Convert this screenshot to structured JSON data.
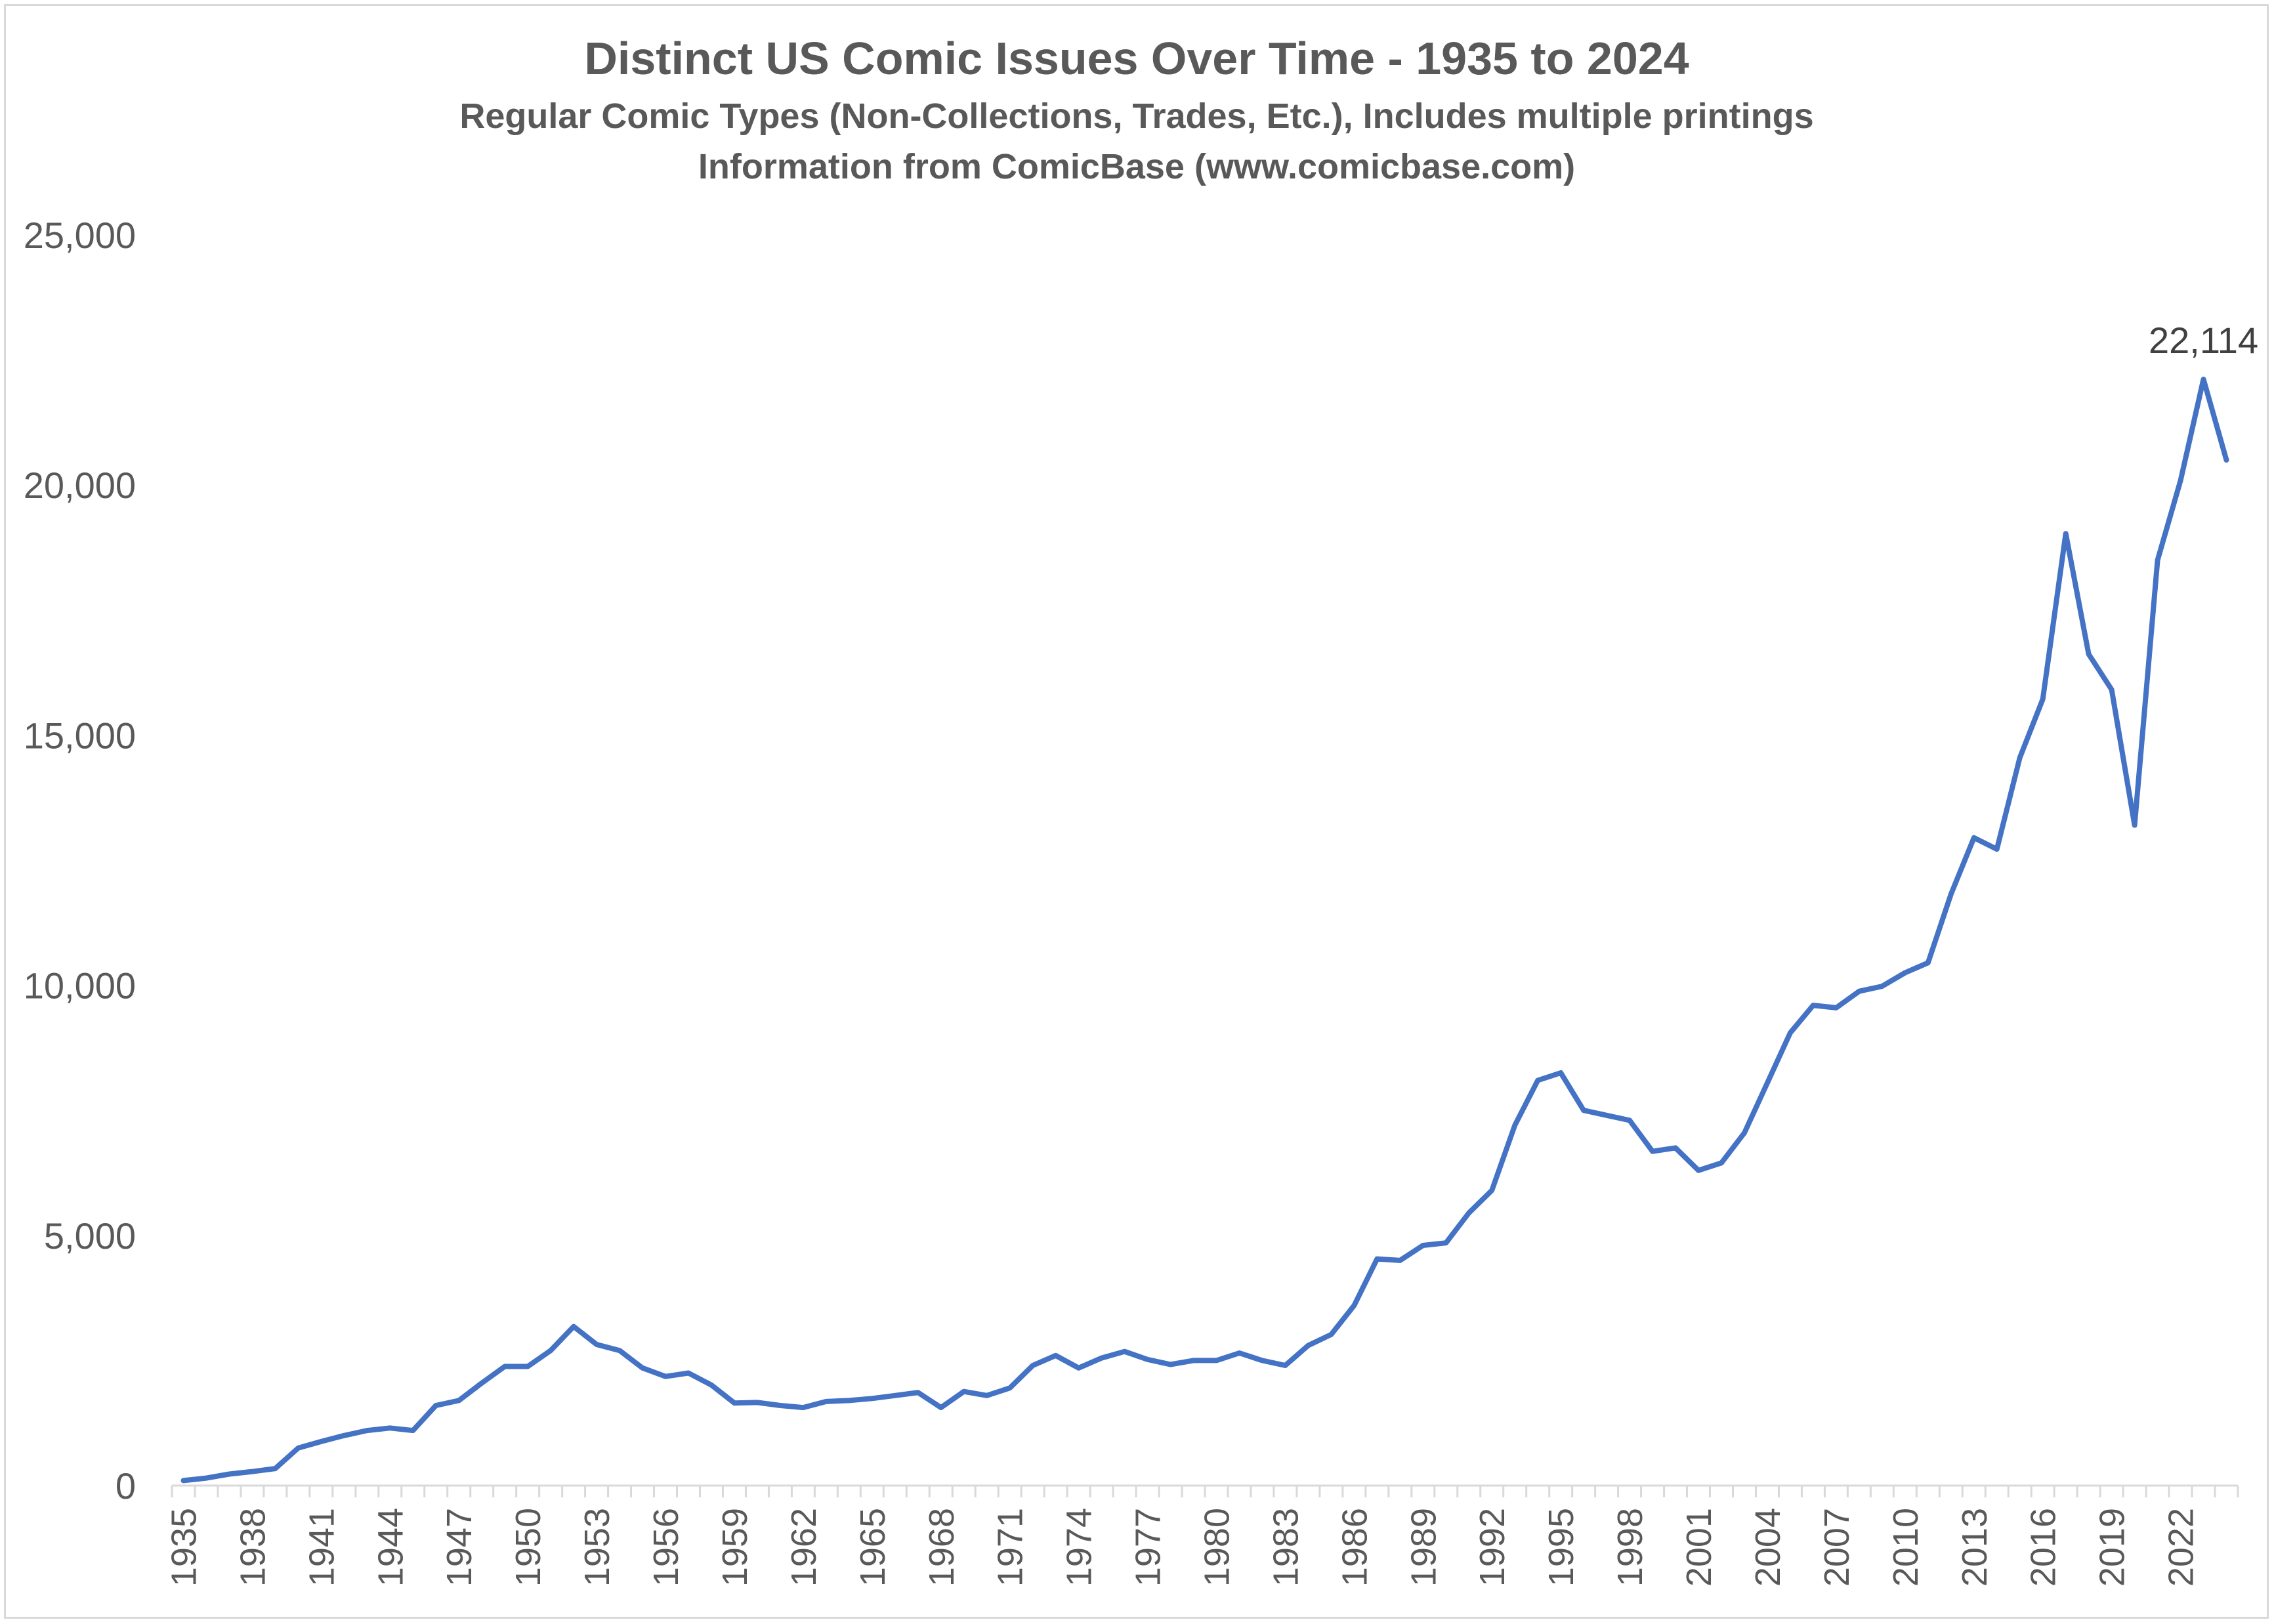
{
  "chart_data": {
    "type": "line",
    "title": "Distinct US Comic Issues Over Time - 1935 to 2024",
    "subtitles": [
      "Regular Comic Types (Non-Collections, Trades, Etc.), Includes multiple printings",
      "Information from ComicBase (www.comicbase.com)"
    ],
    "xlabel": "",
    "ylabel": "",
    "ylim": [
      0,
      25000
    ],
    "y_ticks": [
      0,
      5000,
      10000,
      15000,
      20000,
      25000
    ],
    "y_tick_labels": [
      "0",
      "5,000",
      "10,000",
      "15,000",
      "20,000",
      "25,000"
    ],
    "x_tick_labels": [
      "1935",
      "1938",
      "1941",
      "1944",
      "1947",
      "1950",
      "1953",
      "1956",
      "1959",
      "1962",
      "1965",
      "1968",
      "1971",
      "1974",
      "1977",
      "1980",
      "1983",
      "1986",
      "1989",
      "1992",
      "1995",
      "1998",
      "2001",
      "2004",
      "2007",
      "2010",
      "2013",
      "2016",
      "2019",
      "2022"
    ],
    "grid": false,
    "legend": "none",
    "color": "#4472C4",
    "annotation": {
      "year": 2023,
      "text": "22,114"
    },
    "series": [
      {
        "x": [
          1935,
          1936,
          1937,
          1938,
          1939,
          1940,
          1941,
          1942,
          1943,
          1944,
          1945,
          1946,
          1947,
          1948,
          1949,
          1950,
          1951,
          1952,
          1953,
          1954,
          1955,
          1956,
          1957,
          1958,
          1959,
          1960,
          1961,
          1962,
          1963,
          1964,
          1965,
          1966,
          1967,
          1968,
          1969,
          1970,
          1971,
          1972,
          1973,
          1974,
          1975,
          1976,
          1977,
          1978,
          1979,
          1980,
          1981,
          1982,
          1983,
          1984,
          1985,
          1986,
          1987,
          1988,
          1989,
          1990,
          1991,
          1992,
          1993,
          1994,
          1995,
          1996,
          1997,
          1998,
          1999,
          2000,
          2001,
          2002,
          2003,
          2004,
          2005,
          2006,
          2007,
          2008,
          2009,
          2010,
          2011,
          2012,
          2013,
          2014,
          2015,
          2016,
          2017,
          2018,
          2019,
          2020,
          2021,
          2022,
          2023,
          2024
        ],
        "values": [
          100,
          150,
          230,
          280,
          340,
          750,
          880,
          1000,
          1100,
          1150,
          1100,
          1600,
          1700,
          2050,
          2380,
          2380,
          2700,
          3180,
          2820,
          2700,
          2350,
          2180,
          2250,
          2010,
          1650,
          1660,
          1600,
          1560,
          1680,
          1700,
          1740,
          1800,
          1860,
          1560,
          1880,
          1800,
          1950,
          2400,
          2600,
          2350,
          2550,
          2680,
          2520,
          2420,
          2500,
          2500,
          2650,
          2500,
          2400,
          2800,
          3020,
          3600,
          4530,
          4500,
          4800,
          4850,
          5450,
          5900,
          7200,
          8100,
          8250,
          7500,
          7400,
          7300,
          6680,
          6750,
          6300,
          6450,
          7050,
          8050,
          9050,
          9600,
          9550,
          9880,
          9980,
          10250,
          10450,
          11820,
          12950,
          12720,
          14550,
          15720,
          19030,
          16620,
          15910,
          13200,
          18500,
          20090,
          22114,
          20500
        ]
      }
    ]
  }
}
